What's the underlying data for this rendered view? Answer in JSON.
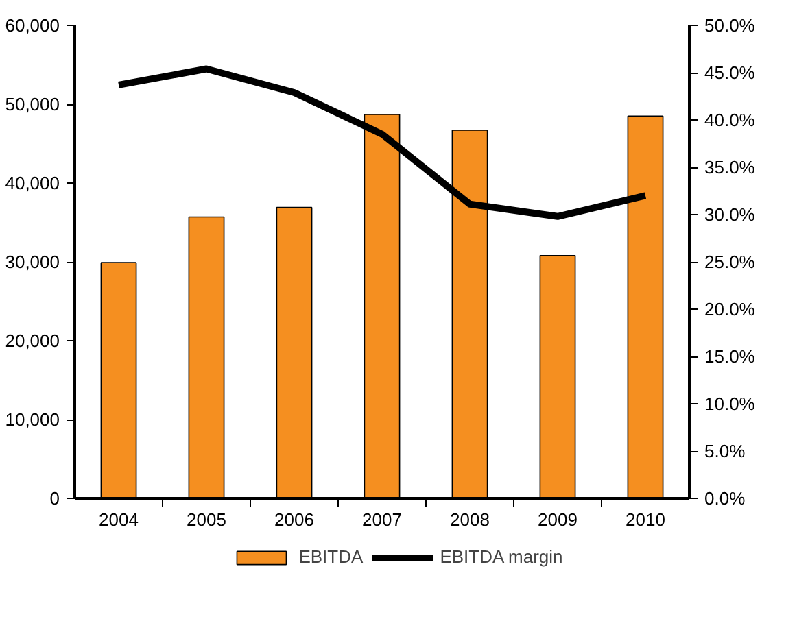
{
  "chart_data": {
    "type": "bar",
    "categories": [
      "2004",
      "2005",
      "2006",
      "2007",
      "2008",
      "2009",
      "2010"
    ],
    "series": [
      {
        "name": "EBITDA",
        "type": "bar",
        "color": "#f58f20",
        "values": [
          29900,
          35700,
          36900,
          48700,
          46700,
          30800,
          48500
        ]
      },
      {
        "name": "EBITDA margin",
        "type": "line",
        "axis": "y2",
        "color": "#000000",
        "values": [
          43.7,
          45.4,
          42.9,
          38.5,
          31.1,
          29.8,
          32.0
        ]
      }
    ],
    "ylim": [
      0,
      60000
    ],
    "yticks": [
      0,
      {
        "value": 10000,
        "label": "10,000"
      },
      {
        "value": 20000,
        "label": "20,000"
      },
      {
        "value": 30000,
        "label": "30,000"
      },
      {
        "value": 40000,
        "label": "40,000"
      },
      {
        "value": 50000,
        "label": "50,000"
      },
      {
        "value": 60000,
        "label": "60,000"
      }
    ],
    "y2lim": [
      0,
      50
    ],
    "y2ticks": [
      {
        "value": 0,
        "label": "0.0%"
      },
      {
        "value": 5,
        "label": "5.0%"
      },
      {
        "value": 10,
        "label": "10.0%"
      },
      {
        "value": 15,
        "label": "15.0%"
      },
      {
        "value": 20,
        "label": "20.0%"
      },
      {
        "value": 25,
        "label": "25.0%"
      },
      {
        "value": 30,
        "label": "30.0%"
      },
      {
        "value": 35,
        "label": "35.0%"
      },
      {
        "value": 40,
        "label": "40.0%"
      },
      {
        "value": 45,
        "label": "45.0%"
      },
      {
        "value": 50,
        "label": "50.0%"
      }
    ],
    "grid": false,
    "legend": "bottom",
    "marker": "none",
    "line_style": "solid"
  }
}
